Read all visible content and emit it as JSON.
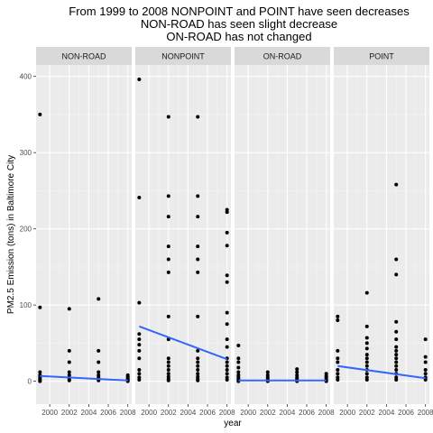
{
  "chart_data": {
    "type": "scatter",
    "title_lines": [
      "From 1999 to 2008 NONPOINT and POINT have seen decreases",
      "NON-ROAD has seen slight decrease",
      "ON-ROAD has not changed"
    ],
    "xlabel": "year",
    "ylabel": "PM2.5 Emission (tons) in Baltimore City",
    "xlim": [
      1998.6,
      2008.4
    ],
    "ylim": [
      -30,
      415
    ],
    "x_ticks": [
      2000,
      2002,
      2004,
      2006,
      2008
    ],
    "x_tick_labels": [
      "2000",
      "2002",
      "2004",
      "2006",
      "2008"
    ],
    "y_ticks": [
      0,
      100,
      200,
      300,
      400
    ],
    "y_tick_labels": [
      "0",
      "100",
      "200",
      "300",
      "400"
    ],
    "grid": true,
    "colors": {
      "panel_bg": "#ebebeb",
      "grid_major": "#ffffff",
      "grid_minor": "#f5f5f5",
      "strip_bg": "#d9d9d9",
      "point": "#000000",
      "trend_line": "#3366ff"
    },
    "panels": [
      {
        "name": "NON-ROAD",
        "points": [
          {
            "x": 1999,
            "y": 350
          },
          {
            "x": 1999,
            "y": 97
          },
          {
            "x": 1999,
            "y": 12
          },
          {
            "x": 1999,
            "y": 8
          },
          {
            "x": 1999,
            "y": 5
          },
          {
            "x": 1999,
            "y": 3
          },
          {
            "x": 1999,
            "y": 1
          },
          {
            "x": 1999,
            "y": 0
          },
          {
            "x": 2002,
            "y": 95
          },
          {
            "x": 2002,
            "y": 40
          },
          {
            "x": 2002,
            "y": 25
          },
          {
            "x": 2002,
            "y": 12
          },
          {
            "x": 2002,
            "y": 8
          },
          {
            "x": 2002,
            "y": 5
          },
          {
            "x": 2002,
            "y": 3
          },
          {
            "x": 2002,
            "y": 1
          },
          {
            "x": 2005,
            "y": 108
          },
          {
            "x": 2005,
            "y": 40
          },
          {
            "x": 2005,
            "y": 25
          },
          {
            "x": 2005,
            "y": 12
          },
          {
            "x": 2005,
            "y": 8
          },
          {
            "x": 2005,
            "y": 5
          },
          {
            "x": 2005,
            "y": 3
          },
          {
            "x": 2005,
            "y": 1
          },
          {
            "x": 2008,
            "y": 8
          },
          {
            "x": 2008,
            "y": 6
          },
          {
            "x": 2008,
            "y": 4
          },
          {
            "x": 2008,
            "y": 3
          },
          {
            "x": 2008,
            "y": 2
          },
          {
            "x": 2008,
            "y": 1
          },
          {
            "x": 2008,
            "y": 0
          }
        ],
        "trend": [
          {
            "x": 1999,
            "y": 7
          },
          {
            "x": 2008,
            "y": 1
          }
        ]
      },
      {
        "name": "NONPOINT",
        "points": [
          {
            "x": 1999,
            "y": 396
          },
          {
            "x": 1999,
            "y": 241
          },
          {
            "x": 1999,
            "y": 103
          },
          {
            "x": 1999,
            "y": 62
          },
          {
            "x": 1999,
            "y": 55
          },
          {
            "x": 1999,
            "y": 48
          },
          {
            "x": 1999,
            "y": 40
          },
          {
            "x": 1999,
            "y": 30
          },
          {
            "x": 1999,
            "y": 15
          },
          {
            "x": 1999,
            "y": 10
          },
          {
            "x": 1999,
            "y": 5
          },
          {
            "x": 1999,
            "y": 2
          },
          {
            "x": 2002,
            "y": 347
          },
          {
            "x": 2002,
            "y": 243
          },
          {
            "x": 2002,
            "y": 216
          },
          {
            "x": 2002,
            "y": 177
          },
          {
            "x": 2002,
            "y": 160
          },
          {
            "x": 2002,
            "y": 143
          },
          {
            "x": 2002,
            "y": 85
          },
          {
            "x": 2002,
            "y": 55
          },
          {
            "x": 2002,
            "y": 30
          },
          {
            "x": 2002,
            "y": 25
          },
          {
            "x": 2002,
            "y": 20
          },
          {
            "x": 2002,
            "y": 15
          },
          {
            "x": 2002,
            "y": 10
          },
          {
            "x": 2002,
            "y": 6
          },
          {
            "x": 2002,
            "y": 3
          },
          {
            "x": 2002,
            "y": 1
          },
          {
            "x": 2005,
            "y": 347
          },
          {
            "x": 2005,
            "y": 243
          },
          {
            "x": 2005,
            "y": 216
          },
          {
            "x": 2005,
            "y": 177
          },
          {
            "x": 2005,
            "y": 160
          },
          {
            "x": 2005,
            "y": 143
          },
          {
            "x": 2005,
            "y": 85
          },
          {
            "x": 2005,
            "y": 40
          },
          {
            "x": 2005,
            "y": 30
          },
          {
            "x": 2005,
            "y": 25
          },
          {
            "x": 2005,
            "y": 20
          },
          {
            "x": 2005,
            "y": 15
          },
          {
            "x": 2005,
            "y": 10
          },
          {
            "x": 2005,
            "y": 6
          },
          {
            "x": 2005,
            "y": 3
          },
          {
            "x": 2005,
            "y": 1
          },
          {
            "x": 2008,
            "y": 225
          },
          {
            "x": 2008,
            "y": 222
          },
          {
            "x": 2008,
            "y": 195
          },
          {
            "x": 2008,
            "y": 178
          },
          {
            "x": 2008,
            "y": 139
          },
          {
            "x": 2008,
            "y": 130
          },
          {
            "x": 2008,
            "y": 90
          },
          {
            "x": 2008,
            "y": 75
          },
          {
            "x": 2008,
            "y": 55
          },
          {
            "x": 2008,
            "y": 45
          },
          {
            "x": 2008,
            "y": 30
          },
          {
            "x": 2008,
            "y": 25
          },
          {
            "x": 2008,
            "y": 20
          },
          {
            "x": 2008,
            "y": 15
          },
          {
            "x": 2008,
            "y": 10
          },
          {
            "x": 2008,
            "y": 5
          },
          {
            "x": 2008,
            "y": 2
          }
        ],
        "trend": [
          {
            "x": 1999,
            "y": 72
          },
          {
            "x": 2008,
            "y": 29
          }
        ]
      },
      {
        "name": "ON-ROAD",
        "points": [
          {
            "x": 1999,
            "y": 47
          },
          {
            "x": 1999,
            "y": 30
          },
          {
            "x": 1999,
            "y": 25
          },
          {
            "x": 1999,
            "y": 18
          },
          {
            "x": 1999,
            "y": 12
          },
          {
            "x": 1999,
            "y": 8
          },
          {
            "x": 1999,
            "y": 5
          },
          {
            "x": 1999,
            "y": 3
          },
          {
            "x": 1999,
            "y": 1
          },
          {
            "x": 1999,
            "y": 0
          },
          {
            "x": 2002,
            "y": 12
          },
          {
            "x": 2002,
            "y": 8
          },
          {
            "x": 2002,
            "y": 5
          },
          {
            "x": 2002,
            "y": 3
          },
          {
            "x": 2002,
            "y": 1
          },
          {
            "x": 2002,
            "y": 0
          },
          {
            "x": 2005,
            "y": 16
          },
          {
            "x": 2005,
            "y": 12
          },
          {
            "x": 2005,
            "y": 8
          },
          {
            "x": 2005,
            "y": 5
          },
          {
            "x": 2005,
            "y": 3
          },
          {
            "x": 2005,
            "y": 1
          },
          {
            "x": 2005,
            "y": 0
          },
          {
            "x": 2008,
            "y": 10
          },
          {
            "x": 2008,
            "y": 7
          },
          {
            "x": 2008,
            "y": 5
          },
          {
            "x": 2008,
            "y": 3
          },
          {
            "x": 2008,
            "y": 1
          },
          {
            "x": 2008,
            "y": 0
          }
        ],
        "trend": [
          {
            "x": 1999,
            "y": 1
          },
          {
            "x": 2008,
            "y": 1
          }
        ]
      },
      {
        "name": "POINT",
        "points": [
          {
            "x": 1999,
            "y": 85
          },
          {
            "x": 1999,
            "y": 80
          },
          {
            "x": 1999,
            "y": 40
          },
          {
            "x": 1999,
            "y": 30
          },
          {
            "x": 1999,
            "y": 25
          },
          {
            "x": 1999,
            "y": 15
          },
          {
            "x": 1999,
            "y": 10
          },
          {
            "x": 1999,
            "y": 5
          },
          {
            "x": 1999,
            "y": 2
          },
          {
            "x": 2002,
            "y": 116
          },
          {
            "x": 2002,
            "y": 72
          },
          {
            "x": 2002,
            "y": 57
          },
          {
            "x": 2002,
            "y": 50
          },
          {
            "x": 2002,
            "y": 43
          },
          {
            "x": 2002,
            "y": 35
          },
          {
            "x": 2002,
            "y": 30
          },
          {
            "x": 2002,
            "y": 25
          },
          {
            "x": 2002,
            "y": 20
          },
          {
            "x": 2002,
            "y": 15
          },
          {
            "x": 2002,
            "y": 10
          },
          {
            "x": 2002,
            "y": 5
          },
          {
            "x": 2002,
            "y": 2
          },
          {
            "x": 2005,
            "y": 258
          },
          {
            "x": 2005,
            "y": 160
          },
          {
            "x": 2005,
            "y": 140
          },
          {
            "x": 2005,
            "y": 78
          },
          {
            "x": 2005,
            "y": 65
          },
          {
            "x": 2005,
            "y": 55
          },
          {
            "x": 2005,
            "y": 45
          },
          {
            "x": 2005,
            "y": 40
          },
          {
            "x": 2005,
            "y": 35
          },
          {
            "x": 2005,
            "y": 30
          },
          {
            "x": 2005,
            "y": 25
          },
          {
            "x": 2005,
            "y": 20
          },
          {
            "x": 2005,
            "y": 15
          },
          {
            "x": 2005,
            "y": 10
          },
          {
            "x": 2005,
            "y": 5
          },
          {
            "x": 2005,
            "y": 2
          },
          {
            "x": 2008,
            "y": 55
          },
          {
            "x": 2008,
            "y": 32
          },
          {
            "x": 2008,
            "y": 25
          },
          {
            "x": 2008,
            "y": 15
          },
          {
            "x": 2008,
            "y": 10
          },
          {
            "x": 2008,
            "y": 5
          },
          {
            "x": 2008,
            "y": 2
          }
        ],
        "trend": [
          {
            "x": 1999,
            "y": 20
          },
          {
            "x": 2008,
            "y": 4
          }
        ]
      }
    ]
  }
}
